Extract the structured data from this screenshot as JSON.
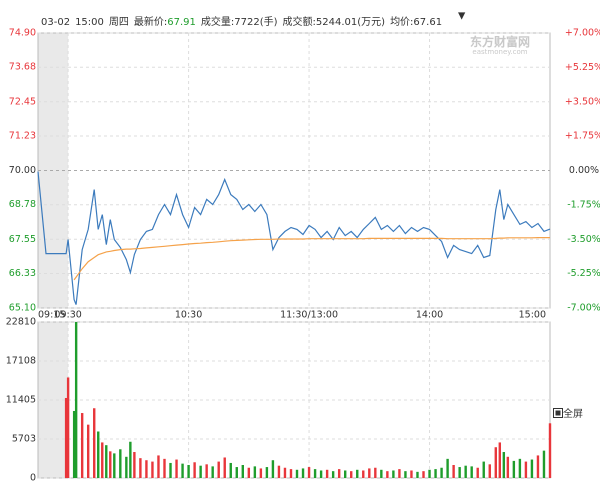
{
  "header": {
    "date": "03-02",
    "time": "15:00",
    "weekday": "周四",
    "last_label": "最新价:",
    "last_price": "67.91",
    "volume": "成交量:7722(手)",
    "turnover": "成交额:5244.01(万元)",
    "avg": "均价:67.61",
    "logo": "东方财富网",
    "logo_url": "eastmoney.com",
    "fullscreen": "全屏"
  },
  "chart_data": [
    {
      "type": "line",
      "x": [
        -15,
        -11,
        -1,
        0,
        3,
        4,
        7,
        10,
        13,
        15,
        17,
        19,
        21,
        23,
        26,
        29,
        31,
        33,
        36,
        39,
        42,
        45,
        48,
        51,
        54,
        57,
        60,
        63,
        66,
        69,
        72,
        75,
        78,
        81,
        84,
        87,
        90,
        93,
        96,
        99,
        102,
        105,
        108,
        111,
        114,
        117,
        120,
        123,
        126,
        129,
        132,
        135,
        138,
        141,
        144,
        147,
        150,
        153,
        156,
        159,
        162,
        165,
        168,
        171,
        174,
        177,
        180,
        183,
        186,
        189,
        192,
        195,
        198,
        201,
        204,
        207,
        210,
        213,
        215,
        217,
        219,
        222,
        225,
        228,
        231,
        234,
        237,
        240
      ],
      "series": [
        {
          "color": "#3c7bbd",
          "values": [
            69.96,
            67.04,
            67.04,
            67.54,
            65.4,
            65.22,
            67.18,
            67.9,
            69.32,
            67.9,
            68.43,
            67.36,
            68.25,
            67.54,
            67.26,
            66.83,
            66.36,
            67.01,
            67.54,
            67.83,
            67.9,
            68.43,
            68.79,
            68.43,
            69.14,
            68.43,
            67.97,
            68.68,
            68.43,
            68.97,
            68.79,
            69.14,
            69.68,
            69.14,
            68.97,
            68.61,
            68.79,
            68.54,
            68.79,
            68.43,
            67.18,
            67.61,
            67.83,
            67.97,
            67.9,
            67.72,
            68.04,
            67.9,
            67.61,
            67.83,
            67.54,
            67.97,
            67.68,
            67.83,
            67.61,
            67.9,
            68.11,
            68.33,
            67.9,
            68.04,
            67.83,
            68.04,
            67.75,
            67.97,
            67.83,
            67.97,
            67.9,
            67.68,
            67.47,
            66.9,
            67.33,
            67.18,
            67.11,
            67.04,
            67.33,
            66.9,
            66.97,
            68.61,
            69.32,
            68.25,
            68.79,
            68.43,
            68.08,
            68.18,
            67.97,
            68.11,
            67.83,
            67.91
          ]
        },
        {
          "color": "#f5a24a",
          "values": [
            null,
            null,
            null,
            null,
            66.1,
            66.2,
            66.5,
            66.75,
            66.9,
            67.0,
            67.05,
            67.1,
            67.12,
            67.15,
            67.18,
            67.2,
            67.2,
            67.21,
            67.22,
            67.24,
            67.26,
            67.28,
            67.3,
            67.32,
            67.34,
            67.36,
            67.38,
            67.4,
            67.41,
            67.43,
            67.44,
            67.46,
            67.48,
            67.5,
            67.51,
            67.52,
            67.53,
            67.54,
            67.55,
            67.55,
            67.55,
            67.56,
            67.56,
            67.56,
            67.56,
            67.56,
            67.57,
            67.57,
            67.57,
            67.57,
            67.57,
            67.57,
            67.57,
            67.57,
            67.57,
            67.57,
            67.58,
            67.58,
            67.58,
            67.58,
            67.58,
            67.58,
            67.58,
            67.58,
            67.58,
            67.58,
            67.58,
            67.58,
            67.58,
            67.57,
            67.57,
            67.57,
            67.57,
            67.57,
            67.57,
            67.57,
            67.57,
            67.58,
            67.59,
            67.59,
            67.6,
            67.6,
            67.6,
            67.6,
            67.6,
            67.61,
            67.61,
            67.61
          ]
        }
      ],
      "xlim": [
        -15,
        240
      ],
      "xticks": [
        {
          "value": -15,
          "label": "09:15"
        },
        {
          "value": 0,
          "label": "09:30"
        },
        {
          "value": 60,
          "label": "10:30"
        },
        {
          "value": 120,
          "label": "11:30/13:00"
        },
        {
          "value": 180,
          "label": "14:00"
        },
        {
          "value": 240,
          "label": "15:00"
        }
      ],
      "ylim": [
        65.1,
        74.9
      ],
      "yticks": [
        {
          "value": 74.9,
          "label": "74.90"
        },
        {
          "value": 73.68,
          "label": "73.68"
        },
        {
          "value": 72.45,
          "label": "72.45"
        },
        {
          "value": 71.23,
          "label": "71.23"
        },
        {
          "value": 70,
          "label": "70.00"
        },
        {
          "value": 68.78,
          "label": "68.78"
        },
        {
          "value": 67.55,
          "label": "67.55"
        },
        {
          "value": 66.33,
          "label": "66.33"
        },
        {
          "value": 65.1,
          "label": "65.10"
        }
      ],
      "y2lim": [
        -7,
        7
      ],
      "y2ticks": [
        {
          "value": 7,
          "label": "+7.00%"
        },
        {
          "value": 5.25,
          "label": "+5.25%"
        },
        {
          "value": 3.5,
          "label": "+3.50%"
        },
        {
          "value": 1.75,
          "label": "+1.75%"
        },
        {
          "value": 0,
          "label": "0.00%"
        },
        {
          "value": -1.75,
          "label": "-1.75%"
        },
        {
          "value": -3.5,
          "label": "-3.50%"
        },
        {
          "value": -5.25,
          "label": "-5.25%"
        },
        {
          "value": -7,
          "label": "-7.00%"
        }
      ],
      "grid": true,
      "up_color": "#e8363b",
      "down_color": "#1f9d2c"
    },
    {
      "type": "bar",
      "x": [
        -15,
        -11,
        -1,
        0,
        3,
        4,
        7,
        10,
        13,
        15,
        17,
        19,
        21,
        23,
        26,
        29,
        31,
        33,
        36,
        39,
        42,
        45,
        48,
        51,
        54,
        57,
        60,
        63,
        66,
        69,
        72,
        75,
        78,
        81,
        84,
        87,
        90,
        93,
        96,
        99,
        102,
        105,
        108,
        111,
        114,
        117,
        120,
        123,
        126,
        129,
        132,
        135,
        138,
        141,
        144,
        147,
        150,
        153,
        156,
        159,
        162,
        165,
        168,
        171,
        174,
        177,
        180,
        183,
        186,
        189,
        192,
        195,
        198,
        201,
        204,
        207,
        210,
        213,
        215,
        217,
        219,
        222,
        225,
        228,
        231,
        234,
        237,
        240
      ],
      "values": [
        null,
        null,
        11700,
        14700,
        9800,
        22810,
        9500,
        7800,
        10200,
        6800,
        5200,
        4800,
        3900,
        3600,
        4200,
        3100,
        5300,
        3800,
        2900,
        2600,
        2400,
        3300,
        2800,
        2200,
        2700,
        2100,
        1900,
        2300,
        1800,
        2000,
        1700,
        2400,
        3000,
        2200,
        1600,
        1900,
        1500,
        1700,
        1400,
        1600,
        2600,
        1800,
        1500,
        1300,
        1200,
        1400,
        1600,
        1300,
        1100,
        1200,
        1000,
        1300,
        1100,
        1000,
        1200,
        1100,
        1400,
        1500,
        1200,
        1000,
        1100,
        1300,
        1000,
        1100,
        900,
        1000,
        1200,
        1300,
        1500,
        2800,
        1900,
        1600,
        1800,
        1700,
        1500,
        2400,
        2000,
        4500,
        5200,
        3800,
        3100,
        2500,
        2800,
        2400,
        2700,
        3300,
        4000,
        8000
      ],
      "xlim": [
        -15,
        240
      ],
      "ylim": [
        0,
        22810
      ],
      "yticks": [
        0,
        5703,
        11405,
        17108,
        22810
      ],
      "grid": true,
      "up_color": "#e8363b",
      "down_color": "#1f9d2c"
    }
  ]
}
